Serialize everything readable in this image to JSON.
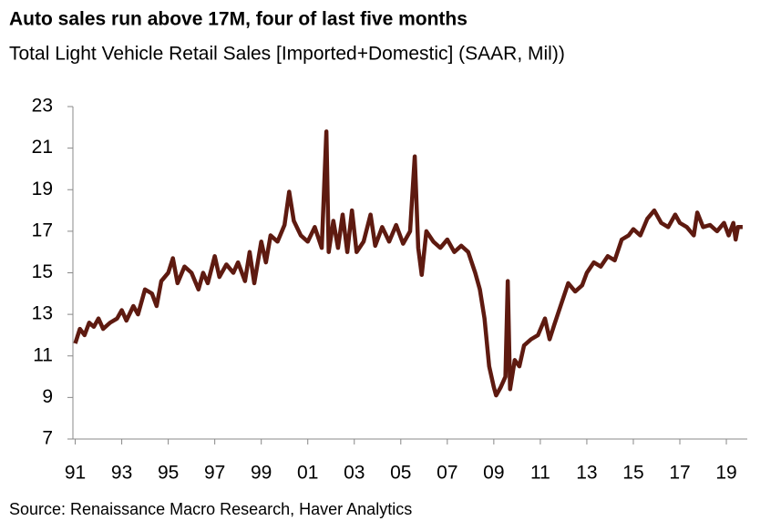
{
  "chart_data": {
    "type": "line",
    "title": "Auto sales run above 17M, four of last five months",
    "subtitle": "Total Light Vehicle Retail Sales [Imported+Domestic] (SAAR, Mil))",
    "source": "Source: Renaissance Macro Research, Haver Analytics",
    "x": [
      1991.0,
      1991.2,
      1991.4,
      1991.6,
      1991.8,
      1992.0,
      1992.2,
      1992.5,
      1992.8,
      1993.0,
      1993.2,
      1993.5,
      1993.7,
      1994.0,
      1994.3,
      1994.5,
      1994.7,
      1995.0,
      1995.2,
      1995.4,
      1995.7,
      1996.0,
      1996.3,
      1996.5,
      1996.7,
      1997.0,
      1997.2,
      1997.5,
      1997.8,
      1998.0,
      1998.3,
      1998.5,
      1998.7,
      1999.0,
      1999.2,
      1999.4,
      1999.7,
      2000.0,
      2000.2,
      2000.4,
      2000.7,
      2001.0,
      2001.3,
      2001.6,
      2001.8,
      2001.9,
      2002.1,
      2002.3,
      2002.5,
      2002.7,
      2002.9,
      2003.1,
      2003.4,
      2003.7,
      2003.9,
      2004.2,
      2004.5,
      2004.8,
      2005.1,
      2005.4,
      2005.6,
      2005.75,
      2005.9,
      2006.1,
      2006.4,
      2006.7,
      2007.0,
      2007.3,
      2007.6,
      2007.9,
      2008.2,
      2008.4,
      2008.6,
      2008.8,
      2009.0,
      2009.1,
      2009.3,
      2009.5,
      2009.6,
      2009.7,
      2009.9,
      2010.1,
      2010.3,
      2010.6,
      2010.9,
      2011.2,
      2011.4,
      2011.6,
      2011.9,
      2012.2,
      2012.5,
      2012.8,
      2013.0,
      2013.3,
      2013.6,
      2013.9,
      2014.2,
      2014.5,
      2014.8,
      2015.0,
      2015.3,
      2015.6,
      2015.9,
      2016.2,
      2016.5,
      2016.8,
      2017.0,
      2017.3,
      2017.6,
      2017.75,
      2018.0,
      2018.3,
      2018.6,
      2018.9,
      2019.1,
      2019.3,
      2019.4,
      2019.5,
      2019.7
    ],
    "series": [
      {
        "name": "Total Light Vehicle Retail Sales",
        "color": "#5e1a10",
        "values": [
          11.6,
          12.3,
          12.0,
          12.6,
          12.4,
          12.8,
          12.3,
          12.6,
          12.8,
          13.2,
          12.7,
          13.4,
          13.0,
          14.2,
          14.0,
          13.4,
          14.6,
          15.0,
          15.7,
          14.5,
          15.3,
          15.0,
          14.2,
          15.0,
          14.5,
          15.8,
          14.8,
          15.4,
          15.0,
          15.5,
          14.6,
          16.0,
          14.5,
          16.5,
          15.5,
          16.8,
          16.5,
          17.3,
          18.9,
          17.5,
          16.8,
          16.5,
          17.2,
          16.2,
          21.8,
          16.0,
          17.5,
          16.2,
          17.8,
          16.0,
          18.0,
          16.0,
          16.5,
          17.8,
          16.3,
          17.2,
          16.5,
          17.3,
          16.4,
          17.0,
          20.6,
          16.2,
          14.9,
          17.0,
          16.5,
          16.2,
          16.6,
          16.0,
          16.3,
          16.0,
          15.0,
          14.2,
          12.8,
          10.5,
          9.5,
          9.1,
          9.5,
          10.0,
          14.6,
          9.4,
          10.8,
          10.5,
          11.5,
          11.8,
          12.0,
          12.8,
          11.8,
          12.5,
          13.5,
          14.5,
          14.1,
          14.4,
          15.0,
          15.5,
          15.3,
          15.8,
          15.6,
          16.6,
          16.8,
          17.1,
          16.8,
          17.6,
          18.0,
          17.4,
          17.2,
          17.8,
          17.4,
          17.2,
          16.8,
          17.9,
          17.2,
          17.3,
          17.0,
          17.4,
          16.8,
          17.4,
          16.6,
          17.2,
          17.2
        ]
      }
    ],
    "xlim": [
      1990.9,
      2019.9
    ],
    "xticks": [
      {
        "value": 1991,
        "label": "91"
      },
      {
        "value": 1993,
        "label": "93"
      },
      {
        "value": 1995,
        "label": "95"
      },
      {
        "value": 1997,
        "label": "97"
      },
      {
        "value": 1999,
        "label": "99"
      },
      {
        "value": 2001,
        "label": "01"
      },
      {
        "value": 2003,
        "label": "03"
      },
      {
        "value": 2005,
        "label": "05"
      },
      {
        "value": 2007,
        "label": "07"
      },
      {
        "value": 2009,
        "label": "09"
      },
      {
        "value": 2011,
        "label": "11"
      },
      {
        "value": 2013,
        "label": "13"
      },
      {
        "value": 2015,
        "label": "15"
      },
      {
        "value": 2017,
        "label": "17"
      },
      {
        "value": 2019,
        "label": "19"
      }
    ],
    "ylim": [
      7,
      23
    ],
    "yticks": [
      7,
      9,
      11,
      13,
      15,
      17,
      19,
      21,
      23
    ],
    "grid": false
  }
}
